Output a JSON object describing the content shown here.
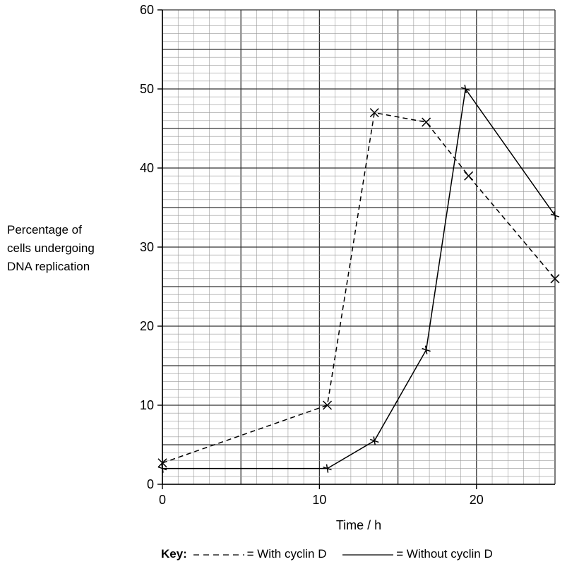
{
  "chart_data": {
    "type": "line",
    "xlabel": "Time / h",
    "ylabel_lines": [
      "Percentage of",
      "cells undergoing",
      "DNA replication"
    ],
    "xlim": [
      0,
      25
    ],
    "ylim": [
      0,
      60
    ],
    "x_ticks": [
      0,
      10,
      20
    ],
    "y_ticks": [
      0,
      10,
      20,
      30,
      40,
      50,
      60
    ],
    "grid": true,
    "minor_grid_step": 1,
    "legend": {
      "title": "Key:",
      "placement": "bottom",
      "entries": [
        {
          "label": "= With cyclin D",
          "style": "dashed"
        },
        {
          "label": "= Without cyclin D",
          "style": "solid"
        }
      ]
    },
    "series": [
      {
        "name": "With cyclin D",
        "style": "dashed",
        "marker": "x",
        "points": [
          [
            0,
            2.7
          ],
          [
            10.5,
            10
          ],
          [
            13.5,
            47
          ],
          [
            16.8,
            45.8
          ],
          [
            19.5,
            39
          ],
          [
            25,
            26
          ]
        ]
      },
      {
        "name": "Without cyclin D",
        "style": "solid",
        "marker": "cross",
        "points": [
          [
            0,
            2
          ],
          [
            10.5,
            2
          ],
          [
            13.5,
            5.5
          ],
          [
            16.8,
            17
          ],
          [
            19.3,
            50
          ],
          [
            25,
            34
          ]
        ]
      }
    ]
  }
}
